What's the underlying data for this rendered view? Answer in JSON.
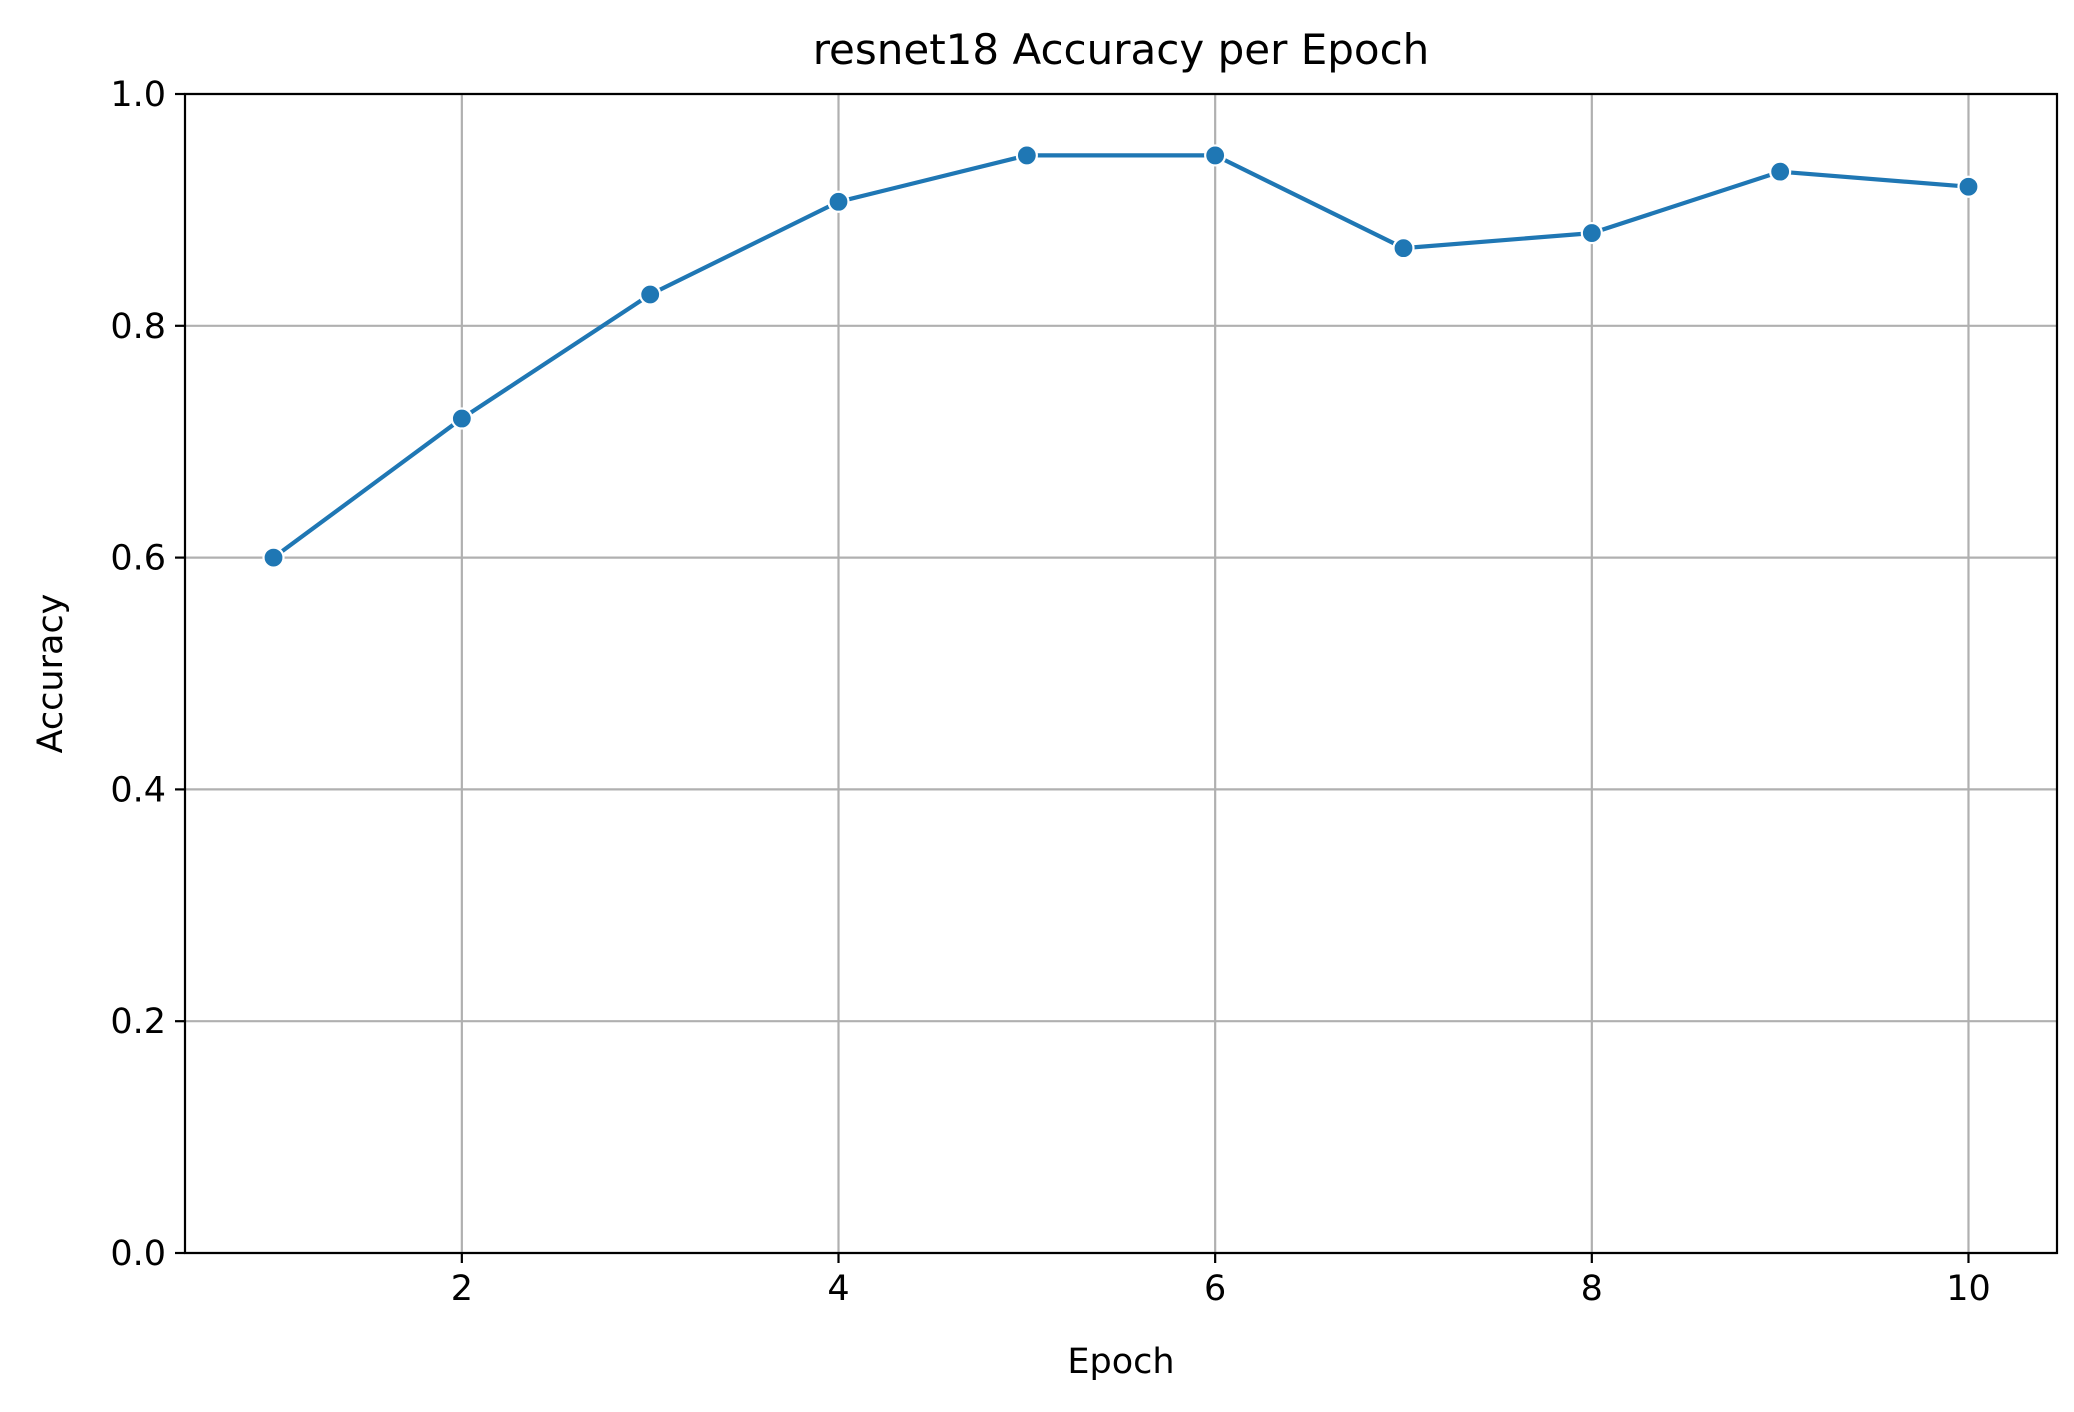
{
  "chart_data": {
    "type": "line",
    "title": "resnet18 Accuracy per Epoch",
    "xlabel": "Epoch",
    "ylabel": "Accuracy",
    "xlim": [
      0.53,
      10.47
    ],
    "ylim": [
      0.0,
      1.0
    ],
    "grid": true,
    "x_ticks": [
      2,
      4,
      6,
      8,
      10
    ],
    "x_tick_labels": [
      "2",
      "4",
      "6",
      "8",
      "10"
    ],
    "y_ticks": [
      0.0,
      0.2,
      0.4,
      0.6,
      0.8,
      1.0
    ],
    "y_tick_labels": [
      "0.0",
      "0.2",
      "0.4",
      "0.6",
      "0.8",
      "1.0"
    ],
    "series": [
      {
        "name": "resnet18",
        "color": "#1f77b4",
        "x": [
          1,
          2,
          3,
          4,
          5,
          6,
          7,
          8,
          9,
          10
        ],
        "values": [
          0.6,
          0.72,
          0.827,
          0.907,
          0.947,
          0.947,
          0.867,
          0.88,
          0.933,
          0.92
        ]
      }
    ]
  }
}
